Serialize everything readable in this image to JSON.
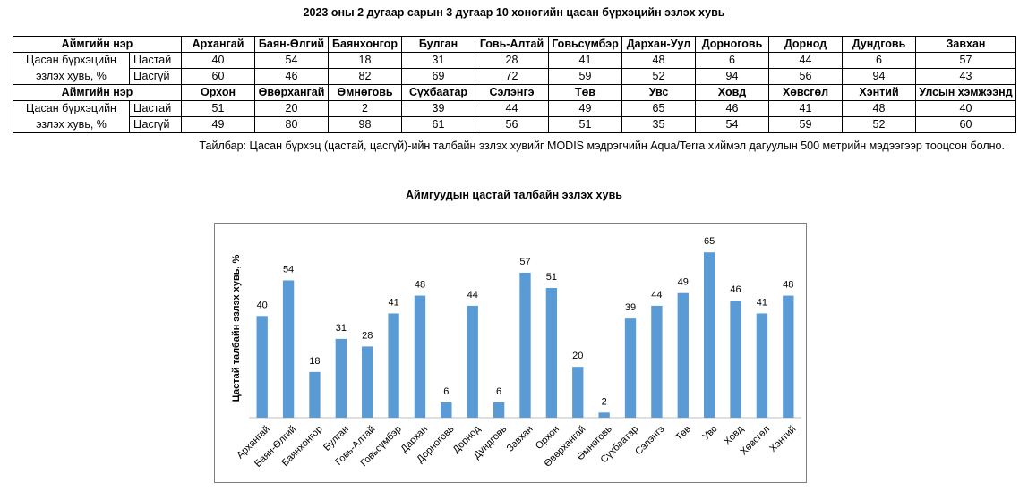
{
  "title": "2023 оны 2 дугаар сарын 3 дугаар 10 хоногийн цасан бүрхэцийн эзлэх хувь",
  "table": {
    "name_header": "Аймгийн нэр",
    "row_label_line1": "Цасан бүрхэцийн",
    "row_label_line2": "эзлэх хувь, %",
    "sub_snow": "Цастай",
    "sub_nosnow": "Цасгүй",
    "block1": {
      "names": [
        "Архангай",
        "Баян-Өлгий",
        "Баянхонгор",
        "Булган",
        "Говь-Алтай",
        "Говьсүмбэр",
        "Дархан-Уул",
        "Дорноговь",
        "Дорнод",
        "Дундговь",
        "Завхан"
      ],
      "snow": [
        "40",
        "54",
        "18",
        "31",
        "28",
        "41",
        "48",
        "6",
        "44",
        "6",
        "57"
      ],
      "nosnow": [
        "60",
        "46",
        "82",
        "69",
        "72",
        "59",
        "52",
        "94",
        "56",
        "94",
        "43"
      ]
    },
    "block2": {
      "names": [
        "Орхон",
        "Өвөрхангай",
        "Өмнөговь",
        "Сүхбаатар",
        "Сэлэнгэ",
        "Төв",
        "Увс",
        "Ховд",
        "Хөвсгөл",
        "Хэнтий",
        "Улсын хэмжээнд"
      ],
      "snow": [
        "51",
        "20",
        "2",
        "39",
        "44",
        "49",
        "65",
        "46",
        "41",
        "48",
        "40"
      ],
      "nosnow": [
        "49",
        "80",
        "98",
        "61",
        "56",
        "51",
        "35",
        "54",
        "59",
        "52",
        "60"
      ]
    }
  },
  "note": "Тайлбар: Цасан бүрхэц (цастай, цасгүй)-ийн талбайн эзлэх хувийг MODIS мэдрэгчийн Aqua/Terra хиймэл дагуулын 500 метрийн мэдээгээр тооцсон болно.",
  "chart_data": {
    "type": "bar",
    "title": "Аймгуудын цастай талбайн эзлэх хувь",
    "ylabel": "Цастай талбайн эзлэх хувь, %",
    "xlabel": "",
    "categories": [
      "Архангай",
      "Баян-Өлгий",
      "Баянхонгор",
      "Булган",
      "Говь-Алтай",
      "Говьсүмбэр",
      "Дархан",
      "Дорноговь",
      "Дорнод",
      "Дундговь",
      "Завхан",
      "Орхон",
      "Өвөрхангай",
      "Өмнөговь",
      "Сүхбаатар",
      "Сэлэнгэ",
      "Төв",
      "Увс",
      "Ховд",
      "Хөвсгөл",
      "Хэнтий"
    ],
    "values": [
      40,
      54,
      18,
      31,
      28,
      41,
      48,
      6,
      44,
      6,
      57,
      51,
      20,
      2,
      39,
      44,
      49,
      65,
      46,
      41,
      48
    ],
    "ylim": [
      0,
      70
    ],
    "grid": false,
    "legend": "none",
    "bar_color": "#5b9bd5"
  }
}
